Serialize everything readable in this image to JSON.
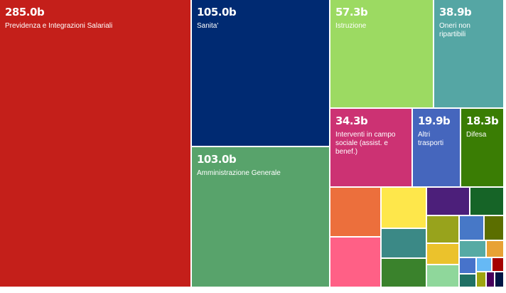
{
  "chart_data": {
    "type": "treemap",
    "unit": "b",
    "labeled": [
      {
        "value": 285.0,
        "value_text": "285.0b",
        "label": "Previdenza e Integrazioni Salariali",
        "color": "#c41f1a"
      },
      {
        "value": 105.0,
        "value_text": "105.0b",
        "label": "Sanita'",
        "color": "#002a72"
      },
      {
        "value": 103.0,
        "value_text": "103.0b",
        "label": "Amministrazione Generale",
        "color": "#58a36b"
      },
      {
        "value": 57.3,
        "value_text": "57.3b",
        "label": "Istruzione",
        "color": "#9cda62"
      },
      {
        "value": 38.9,
        "value_text": "38.9b",
        "label": "Oneri non ripartibili",
        "color": "#55a6a4"
      },
      {
        "value": 34.3,
        "value_text": "34.3b",
        "label": "Interventi in campo sociale (assist. e benef.)",
        "color": "#cc3273"
      },
      {
        "value": 19.9,
        "value_text": "19.9b",
        "label": "Altri trasporti",
        "color": "#4566bd"
      },
      {
        "value": 18.3,
        "value_text": "18.3b",
        "label": "Difesa",
        "color": "#3a7d04"
      }
    ],
    "unlabeled_tiles": [
      {
        "color": "#ec6f3c"
      },
      {
        "color": "#fee74b"
      },
      {
        "color": "#4c1f7a"
      },
      {
        "color": "#166427"
      },
      {
        "color": "#98a31c"
      },
      {
        "color": "#4778c7"
      },
      {
        "color": "#5b6e00"
      },
      {
        "color": "#3b8986"
      },
      {
        "color": "#ff6086"
      },
      {
        "color": "#ebc22c"
      },
      {
        "color": "#56aaa4"
      },
      {
        "color": "#e8a235"
      },
      {
        "color": "#3a822c"
      },
      {
        "color": "#8fd79b"
      },
      {
        "color": "#4773cb"
      },
      {
        "color": "#66b9f5"
      },
      {
        "color": "#a50000"
      },
      {
        "color": "#207064"
      },
      {
        "color": "#9ea510"
      },
      {
        "color": "#47005b"
      },
      {
        "color": "#001544"
      }
    ]
  }
}
